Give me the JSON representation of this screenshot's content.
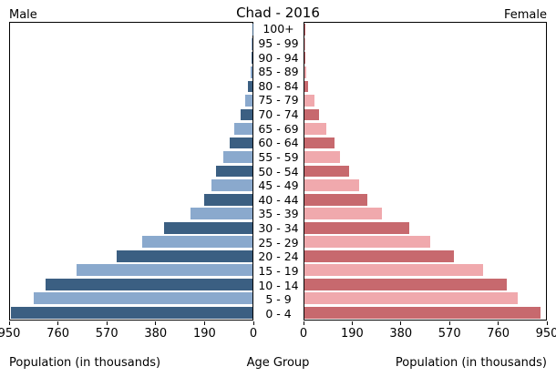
{
  "chart_data": {
    "type": "bar",
    "variant": "population-pyramid",
    "title": "Chad - 2016",
    "left_group_label": "Male",
    "right_group_label": "Female",
    "center_axis_label": "Age Group",
    "left_axis_label": "Population (in thousands)",
    "right_axis_label": "Population (in thousands)",
    "unit": "thousands",
    "xlim": [
      0,
      950
    ],
    "x_ticks": [
      0,
      190,
      380,
      570,
      760,
      950
    ],
    "grid": false,
    "age_groups_top_to_bottom": [
      "100+",
      "95 - 99",
      "90 - 94",
      "85 - 89",
      "80 - 84",
      "75 - 79",
      "70 - 74",
      "65 - 69",
      "60 - 64",
      "55 - 59",
      "50 - 54",
      "45 - 49",
      "40 - 44",
      "35 - 39",
      "30 - 34",
      "25 - 29",
      "20 - 24",
      "15 - 19",
      "10 - 14",
      "5 - 9",
      "0 - 4"
    ],
    "series": [
      {
        "name": "Male",
        "side": "left",
        "values_top_to_bottom": [
          1,
          2,
          4,
          8,
          17,
          30,
          46,
          70,
          88,
          115,
          144,
          162,
          189,
          244,
          348,
          432,
          533,
          688,
          810,
          858,
          948
        ]
      },
      {
        "name": "Female",
        "side": "right",
        "values_top_to_bottom": [
          1,
          2,
          5,
          7,
          15,
          39,
          57,
          86,
          118,
          140,
          175,
          214,
          247,
          304,
          413,
          494,
          588,
          704,
          795,
          838,
          927
        ]
      }
    ],
    "colors": {
      "male_dark": "#3b5f82",
      "male_light": "#8aa9cd",
      "female_dark": "#c7696e",
      "female_light": "#f0a9ad",
      "axis": "#000000",
      "background": "#ffffff"
    },
    "color_rule": "rows alternate dark/light shades; bottom row (0 - 4) is dark"
  }
}
